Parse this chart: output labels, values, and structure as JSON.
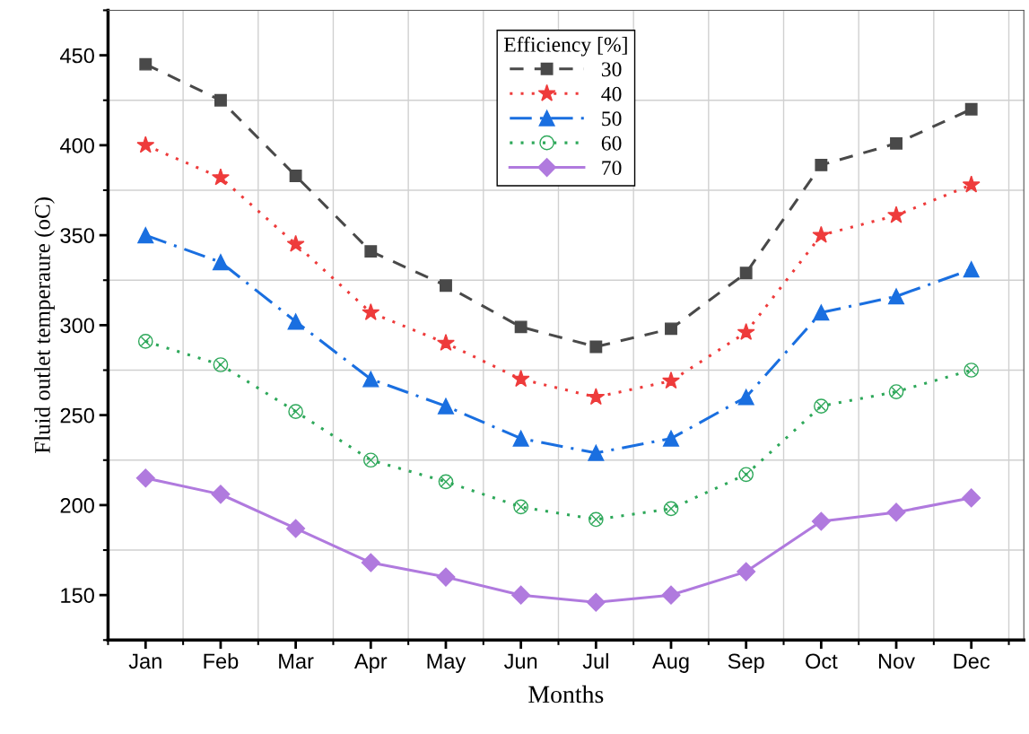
{
  "chart_data": {
    "type": "line",
    "xlabel": "Months",
    "ylabel": "Fluid outlet temperaure (oC)",
    "legend_title": "Efficiency [%]",
    "legend": "top",
    "categories": [
      "Jan",
      "Feb",
      "Mar",
      "Apr",
      "May",
      "Jun",
      "Jul",
      "Aug",
      "Sep",
      "Oct",
      "Nov",
      "Dec"
    ],
    "ylim": [
      125,
      475
    ],
    "yticks": [
      150,
      200,
      250,
      300,
      350,
      400,
      450
    ],
    "grid": true,
    "series": [
      {
        "name": "30",
        "color": "#494949",
        "marker": "square",
        "line_style": "dashed",
        "values": [
          445,
          425,
          383,
          341,
          322,
          299,
          288,
          298,
          329,
          389,
          401,
          420
        ]
      },
      {
        "name": "40",
        "color": "#ee3b3b",
        "marker": "star",
        "line_style": "dotted",
        "values": [
          400,
          382,
          345,
          307,
          290,
          270,
          260,
          269,
          296,
          350,
          361,
          378
        ]
      },
      {
        "name": "50",
        "color": "#1a6fe0",
        "marker": "triangle",
        "line_style": "dashdot",
        "values": [
          350,
          335,
          302,
          270,
          255,
          237,
          229,
          237,
          260,
          307,
          316,
          331
        ]
      },
      {
        "name": "60",
        "color": "#2ea85a",
        "marker": "circle",
        "line_style": "dotted",
        "values": [
          291,
          278,
          252,
          225,
          213,
          199,
          192,
          198,
          217,
          255,
          263,
          275
        ]
      },
      {
        "name": "70",
        "color": "#b07ade",
        "marker": "diamond",
        "line_style": "solid",
        "values": [
          215,
          206,
          187,
          168,
          160,
          150,
          146,
          150,
          163,
          191,
          196,
          204
        ]
      }
    ]
  }
}
